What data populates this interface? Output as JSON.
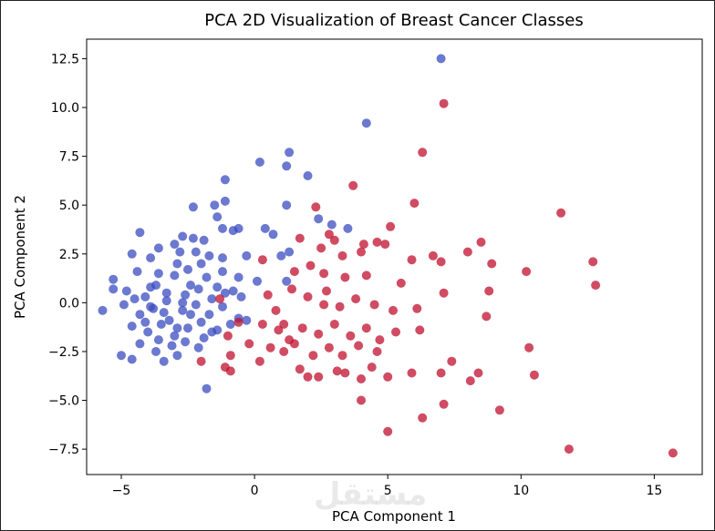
{
  "chart_data": {
    "type": "scatter",
    "title": "PCA 2D Visualization of Breast Cancer Classes",
    "xlabel": "PCA Component 1",
    "ylabel": "PCA Component 2",
    "xlim": [
      -6.3,
      16.8
    ],
    "ylim": [
      -8.8,
      13.5
    ],
    "xticks": [
      -5,
      0,
      5,
      10,
      15
    ],
    "yticks": [
      -7.5,
      -5.0,
      -2.5,
      0.0,
      2.5,
      5.0,
      7.5,
      10.0,
      12.5
    ],
    "xtick_labels": [
      "−5",
      "0",
      "5",
      "10",
      "15"
    ],
    "ytick_labels": [
      "−7.5",
      "−5.0",
      "−2.5",
      "0.0",
      "2.5",
      "5.0",
      "7.5",
      "10.0",
      "12.5"
    ],
    "grid": false,
    "legend": "none",
    "series": [
      {
        "color": "#3b4cc0",
        "points": [
          [
            7.0,
            12.5
          ],
          [
            4.2,
            9.2
          ],
          [
            0.2,
            7.2
          ],
          [
            1.3,
            7.7
          ],
          [
            1.2,
            7.0
          ],
          [
            2.0,
            6.5
          ],
          [
            1.2,
            5.0
          ],
          [
            -1.1,
            6.3
          ],
          [
            -1.1,
            5.2
          ],
          [
            -1.5,
            5.0
          ],
          [
            -2.3,
            4.9
          ],
          [
            -1.4,
            4.4
          ],
          [
            -1.2,
            3.8
          ],
          [
            -0.6,
            3.8
          ],
          [
            -0.8,
            3.7
          ],
          [
            0.4,
            3.8
          ],
          [
            0.7,
            3.5
          ],
          [
            2.4,
            4.3
          ],
          [
            2.9,
            4.0
          ],
          [
            3.5,
            3.8
          ],
          [
            -4.3,
            3.6
          ],
          [
            -2.7,
            3.4
          ],
          [
            -3.0,
            3.0
          ],
          [
            -2.3,
            3.3
          ],
          [
            -1.9,
            3.2
          ],
          [
            -3.6,
            2.8
          ],
          [
            -2.8,
            2.6
          ],
          [
            -4.6,
            2.5
          ],
          [
            -3.9,
            2.3
          ],
          [
            -2.2,
            2.6
          ],
          [
            -1.7,
            2.4
          ],
          [
            -1.2,
            2.3
          ],
          [
            -0.3,
            2.4
          ],
          [
            1.0,
            2.4
          ],
          [
            1.3,
            2.6
          ],
          [
            -5.3,
            1.2
          ],
          [
            -4.4,
            1.6
          ],
          [
            -3.6,
            1.5
          ],
          [
            -3.0,
            1.4
          ],
          [
            -2.5,
            1.7
          ],
          [
            -1.8,
            1.3
          ],
          [
            -1.2,
            1.6
          ],
          [
            -0.6,
            1.3
          ],
          [
            0.1,
            1.1
          ],
          [
            1.2,
            1.1
          ],
          [
            -5.3,
            0.7
          ],
          [
            -4.8,
            0.6
          ],
          [
            -4.1,
            0.3
          ],
          [
            -3.7,
            0.9
          ],
          [
            -3.3,
            0.1
          ],
          [
            -2.6,
            0.4
          ],
          [
            -2.1,
            0.7
          ],
          [
            -1.6,
            0.2
          ],
          [
            -1.1,
            0.5
          ],
          [
            -0.5,
            0.3
          ],
          [
            -5.7,
            -0.4
          ],
          [
            -4.9,
            -0.1
          ],
          [
            -4.3,
            -0.6
          ],
          [
            -3.8,
            -0.3
          ],
          [
            -3.2,
            -0.9
          ],
          [
            -2.7,
            -0.4
          ],
          [
            -2.2,
            -0.1
          ],
          [
            -1.7,
            -0.6
          ],
          [
            -1.2,
            -0.2
          ],
          [
            -0.6,
            -0.8
          ],
          [
            -4.6,
            -1.2
          ],
          [
            -4.0,
            -1.5
          ],
          [
            -3.5,
            -1.1
          ],
          [
            -3.0,
            -1.7
          ],
          [
            -2.5,
            -1.3
          ],
          [
            -2.0,
            -1.0
          ],
          [
            -1.4,
            -1.4
          ],
          [
            -0.9,
            -1.1
          ],
          [
            -4.3,
            -2.1
          ],
          [
            -3.7,
            -2.5
          ],
          [
            -3.1,
            -2.2
          ],
          [
            -2.6,
            -2.0
          ],
          [
            -2.1,
            -2.3
          ],
          [
            -5.0,
            -2.7
          ],
          [
            -4.6,
            -2.9
          ],
          [
            -3.4,
            -3.0
          ],
          [
            -2.9,
            -2.7
          ],
          [
            -1.8,
            -4.4
          ],
          [
            -0.3,
            -0.9
          ],
          [
            -3.9,
            0.8
          ],
          [
            -2.9,
            2.0
          ],
          [
            -2.4,
            0.9
          ],
          [
            -3.4,
            -0.5
          ],
          [
            -2.9,
            -1.3
          ],
          [
            -2.4,
            -0.6
          ],
          [
            -4.1,
            -1.0
          ],
          [
            -1.9,
            -1.8
          ],
          [
            -3.6,
            -1.9
          ],
          [
            -2.7,
            0.0
          ],
          [
            -1.4,
            0.8
          ],
          [
            -3.3,
            0.5
          ],
          [
            -4.5,
            0.2
          ],
          [
            -2.0,
            2.0
          ],
          [
            -0.8,
            0.6
          ],
          [
            -1.6,
            -1.5
          ],
          [
            -3.9,
            -0.2
          ]
        ]
      },
      {
        "color": "#c0102f",
        "points": [
          [
            7.1,
            10.2
          ],
          [
            6.3,
            7.7
          ],
          [
            6.0,
            5.1
          ],
          [
            3.7,
            6.0
          ],
          [
            2.3,
            4.9
          ],
          [
            11.5,
            4.6
          ],
          [
            5.1,
            3.9
          ],
          [
            2.8,
            3.5
          ],
          [
            1.7,
            3.3
          ],
          [
            3.0,
            3.2
          ],
          [
            4.1,
            3.0
          ],
          [
            4.6,
            3.1
          ],
          [
            4.9,
            3.0
          ],
          [
            8.5,
            3.1
          ],
          [
            8.0,
            2.6
          ],
          [
            2.5,
            2.8
          ],
          [
            3.3,
            2.4
          ],
          [
            4.0,
            2.6
          ],
          [
            5.9,
            2.2
          ],
          [
            6.7,
            2.4
          ],
          [
            7.0,
            2.1
          ],
          [
            8.9,
            2.0
          ],
          [
            12.7,
            2.1
          ],
          [
            10.2,
            1.6
          ],
          [
            12.8,
            0.9
          ],
          [
            0.3,
            2.2
          ],
          [
            1.5,
            1.6
          ],
          [
            2.1,
            1.9
          ],
          [
            2.6,
            1.5
          ],
          [
            3.4,
            1.3
          ],
          [
            4.2,
            1.4
          ],
          [
            5.5,
            1.0
          ],
          [
            7.1,
            0.5
          ],
          [
            8.8,
            0.6
          ],
          [
            0.5,
            0.4
          ],
          [
            1.4,
            0.7
          ],
          [
            2.0,
            0.3
          ],
          [
            2.7,
            0.6
          ],
          [
            3.2,
            -0.2
          ],
          [
            3.8,
            0.2
          ],
          [
            4.5,
            -0.1
          ],
          [
            5.2,
            -0.4
          ],
          [
            6.1,
            -0.3
          ],
          [
            8.7,
            -0.7
          ],
          [
            0.3,
            -1.1
          ],
          [
            0.9,
            -1.4
          ],
          [
            1.3,
            -1.9
          ],
          [
            1.8,
            -1.3
          ],
          [
            2.4,
            -1.6
          ],
          [
            3.0,
            -1.1
          ],
          [
            3.6,
            -1.7
          ],
          [
            4.2,
            -1.3
          ],
          [
            4.7,
            -1.9
          ],
          [
            5.3,
            -1.5
          ],
          [
            6.2,
            -1.4
          ],
          [
            0.6,
            -2.3
          ],
          [
            1.1,
            -2.5
          ],
          [
            1.5,
            -2.1
          ],
          [
            2.2,
            -2.7
          ],
          [
            2.8,
            -2.3
          ],
          [
            3.3,
            -2.7
          ],
          [
            3.9,
            -2.2
          ],
          [
            4.6,
            -2.5
          ],
          [
            7.4,
            -3.0
          ],
          [
            0.2,
            -3.0
          ],
          [
            1.7,
            -3.4
          ],
          [
            2.4,
            -3.8
          ],
          [
            3.4,
            -3.6
          ],
          [
            4.0,
            -3.9
          ],
          [
            5.0,
            -3.8
          ],
          [
            5.9,
            -3.6
          ],
          [
            7.0,
            -3.6
          ],
          [
            8.4,
            -3.6
          ],
          [
            8.1,
            -4.0
          ],
          [
            10.3,
            -2.3
          ],
          [
            10.5,
            -3.7
          ],
          [
            4.0,
            -5.0
          ],
          [
            7.1,
            -5.2
          ],
          [
            9.2,
            -5.5
          ],
          [
            6.3,
            -5.9
          ],
          [
            5.0,
            -6.6
          ],
          [
            11.8,
            -7.5
          ],
          [
            15.7,
            -7.7
          ],
          [
            -0.9,
            -2.7
          ],
          [
            -2.0,
            -3.0
          ],
          [
            -1.1,
            -3.3
          ],
          [
            -0.9,
            -3.5
          ],
          [
            -0.2,
            -2.1
          ],
          [
            -1.3,
            0.2
          ],
          [
            -0.6,
            -1.0
          ],
          [
            -1.0,
            -1.7
          ],
          [
            0.8,
            -0.4
          ],
          [
            2.6,
            -0.1
          ],
          [
            3.1,
            -3.5
          ],
          [
            2.0,
            -3.8
          ],
          [
            4.4,
            -3.3
          ],
          [
            1.1,
            -1.1
          ]
        ]
      }
    ]
  },
  "watermark": "مستقل"
}
